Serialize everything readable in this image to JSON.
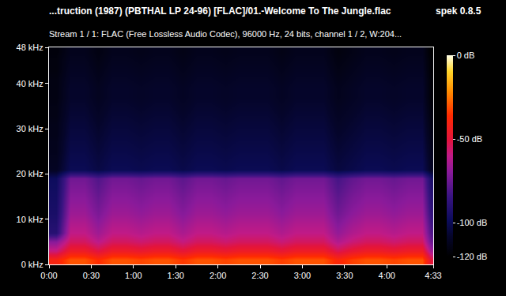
{
  "chart_data": {
    "type": "heatmap",
    "title": "...truction (1987) (PBTHAL LP 24-96) [FLAC]/01.-Welcome To The Jungle.flac",
    "subtitle": "Stream 1 / 1: FLAC (Free Lossless Audio Codec), 96000 Hz, 24 bits, channel 1 / 2, W:204...",
    "annotations": [
      "spek 0.8.5"
    ],
    "x": [
      5,
      15,
      25,
      35,
      45,
      55,
      65,
      75,
      85,
      95,
      105,
      115,
      125,
      135,
      145,
      155,
      165,
      175,
      185,
      195,
      205,
      215,
      225,
      235,
      245,
      255,
      265,
      271.5
    ],
    "y": [
      1,
      3,
      5,
      7,
      9,
      11,
      13,
      15,
      17,
      19,
      21,
      23,
      25,
      27,
      29,
      31,
      33,
      35,
      37,
      39,
      41,
      43,
      45,
      47
    ],
    "z": [
      [
        -40,
        -30,
        -30,
        -36,
        -30,
        -30,
        -32,
        -30,
        -30,
        -34,
        -30,
        -30,
        -32,
        -30,
        -30,
        -30,
        -33,
        -30,
        -30,
        -30,
        -38,
        -33,
        -30,
        -30,
        -32,
        -30,
        -30,
        -50
      ],
      [
        -58,
        -45,
        -45,
        -51,
        -45,
        -45,
        -47,
        -45,
        -45,
        -49,
        -45,
        -45,
        -47,
        -45,
        -45,
        -45,
        -48,
        -45,
        -45,
        -45,
        -53,
        -48,
        -45,
        -45,
        -47,
        -45,
        -45,
        -65
      ],
      [
        -70,
        -55,
        -55,
        -61,
        -55,
        -55,
        -57,
        -55,
        -55,
        -59,
        -55,
        -55,
        -57,
        -55,
        -55,
        -55,
        -58,
        -55,
        -55,
        -55,
        -63,
        -58,
        -55,
        -55,
        -57,
        -55,
        -55,
        -75
      ],
      [
        -90,
        -60,
        -60,
        -66,
        -60,
        -60,
        -62,
        -60,
        -60,
        -64,
        -60,
        -60,
        -62,
        -60,
        -60,
        -60,
        -63,
        -60,
        -60,
        -60,
        -68,
        -63,
        -60,
        -60,
        -62,
        -60,
        -60,
        -80
      ],
      [
        -92,
        -63,
        -63,
        -69,
        -63,
        -63,
        -65,
        -63,
        -63,
        -67,
        -63,
        -63,
        -65,
        -63,
        -63,
        -63,
        -66,
        -63,
        -63,
        -63,
        -71,
        -66,
        -63,
        -63,
        -65,
        -63,
        -63,
        -83
      ],
      [
        -94,
        -66,
        -66,
        -72,
        -66,
        -66,
        -68,
        -66,
        -66,
        -70,
        -66,
        -66,
        -68,
        -66,
        -66,
        -66,
        -69,
        -66,
        -66,
        -66,
        -74,
        -69,
        -66,
        -66,
        -68,
        -66,
        -66,
        -86
      ],
      [
        -95,
        -68,
        -68,
        -74,
        -68,
        -68,
        -70,
        -68,
        -68,
        -72,
        -68,
        -68,
        -70,
        -68,
        -68,
        -68,
        -71,
        -68,
        -68,
        -68,
        -76,
        -71,
        -68,
        -68,
        -70,
        -68,
        -68,
        -88
      ],
      [
        -96,
        -70,
        -70,
        -76,
        -70,
        -70,
        -72,
        -70,
        -70,
        -74,
        -70,
        -70,
        -72,
        -70,
        -70,
        -70,
        -73,
        -70,
        -70,
        -70,
        -78,
        -73,
        -70,
        -70,
        -72,
        -70,
        -70,
        -90
      ],
      [
        -97,
        -72,
        -72,
        -78,
        -72,
        -72,
        -74,
        -72,
        -72,
        -76,
        -72,
        -72,
        -74,
        -72,
        -72,
        -72,
        -75,
        -72,
        -72,
        -72,
        -80,
        -75,
        -72,
        -72,
        -74,
        -72,
        -72,
        -92
      ],
      [
        -98,
        -74,
        -74,
        -80,
        -74,
        -74,
        -76,
        -74,
        -74,
        -78,
        -74,
        -74,
        -76,
        -74,
        -74,
        -74,
        -77,
        -74,
        -74,
        -74,
        -82,
        -77,
        -74,
        -74,
        -76,
        -74,
        -74,
        -94
      ],
      [
        -110,
        -100,
        -100,
        -103,
        -100,
        -100,
        -101,
        -100,
        -100,
        -102,
        -100,
        -100,
        -101,
        -100,
        -100,
        -100,
        -102,
        -100,
        -100,
        -100,
        -104,
        -102,
        -100,
        -100,
        -101,
        -100,
        -100,
        -110
      ],
      [
        -111,
        -101,
        -101,
        -104,
        -101,
        -101,
        -102,
        -101,
        -101,
        -103,
        -101,
        -101,
        -102,
        -101,
        -101,
        -101,
        -103,
        -101,
        -101,
        -101,
        -105,
        -103,
        -101,
        -101,
        -102,
        -101,
        -101,
        -111
      ],
      [
        -112,
        -102,
        -102,
        -105,
        -102,
        -102,
        -103,
        -102,
        -102,
        -104,
        -102,
        -102,
        -103,
        -102,
        -102,
        -102,
        -104,
        -102,
        -102,
        -102,
        -106,
        -104,
        -102,
        -102,
        -103,
        -102,
        -102,
        -112
      ],
      [
        -112,
        -103,
        -103,
        -106,
        -103,
        -103,
        -104,
        -103,
        -103,
        -105,
        -103,
        -103,
        -104,
        -103,
        -103,
        -103,
        -105,
        -103,
        -103,
        -103,
        -107,
        -105,
        -103,
        -103,
        -104,
        -103,
        -103,
        -113
      ],
      [
        -113,
        -104,
        -104,
        -107,
        -104,
        -104,
        -105,
        -104,
        -104,
        -106,
        -104,
        -104,
        -105,
        -104,
        -104,
        -104,
        -106,
        -104,
        -104,
        -104,
        -108,
        -106,
        -104,
        -104,
        -105,
        -104,
        -104,
        -114
      ],
      [
        -113,
        -105,
        -105,
        -108,
        -105,
        -105,
        -106,
        -105,
        -105,
        -107,
        -105,
        -105,
        -106,
        -105,
        -105,
        -105,
        -107,
        -105,
        -105,
        -105,
        -109,
        -107,
        -105,
        -105,
        -106,
        -105,
        -105,
        -115
      ],
      [
        -114,
        -106,
        -106,
        -109,
        -106,
        -106,
        -107,
        -106,
        -106,
        -108,
        -106,
        -106,
        -107,
        -106,
        -106,
        -106,
        -108,
        -106,
        -106,
        -106,
        -110,
        -108,
        -106,
        -106,
        -107,
        -106,
        -106,
        -116
      ],
      [
        -114,
        -107,
        -107,
        -110,
        -107,
        -107,
        -108,
        -107,
        -107,
        -109,
        -107,
        -107,
        -108,
        -107,
        -107,
        -107,
        -109,
        -107,
        -107,
        -107,
        -111,
        -109,
        -107,
        -107,
        -108,
        -107,
        -107,
        -117
      ],
      [
        -115,
        -108,
        -108,
        -111,
        -108,
        -108,
        -109,
        -108,
        -108,
        -110,
        -108,
        -108,
        -109,
        -108,
        -108,
        -108,
        -110,
        -108,
        -108,
        -108,
        -112,
        -110,
        -108,
        -108,
        -109,
        -108,
        -108,
        -118
      ],
      [
        -115,
        -108,
        -108,
        -111,
        -108,
        -108,
        -109,
        -108,
        -108,
        -110,
        -108,
        -108,
        -109,
        -108,
        -108,
        -108,
        -110,
        -108,
        -108,
        -108,
        -112,
        -110,
        -108,
        -108,
        -109,
        -108,
        -108,
        -118
      ],
      [
        -115,
        -109,
        -109,
        -112,
        -109,
        -109,
        -110,
        -109,
        -109,
        -111,
        -109,
        -109,
        -110,
        -109,
        -109,
        -109,
        -111,
        -109,
        -109,
        -109,
        -113,
        -111,
        -109,
        -109,
        -110,
        -109,
        -109,
        -118
      ],
      [
        -116,
        -110,
        -110,
        -113,
        -110,
        -110,
        -111,
        -110,
        -110,
        -112,
        -110,
        -110,
        -111,
        -110,
        -110,
        -110,
        -112,
        -110,
        -110,
        -110,
        -114,
        -112,
        -110,
        -110,
        -111,
        -110,
        -110,
        -119
      ],
      [
        -116,
        -111,
        -111,
        -114,
        -111,
        -111,
        -112,
        -111,
        -111,
        -113,
        -111,
        -111,
        -112,
        -111,
        -111,
        -111,
        -113,
        -111,
        -111,
        -111,
        -115,
        -113,
        -111,
        -111,
        -112,
        -111,
        -111,
        -119
      ],
      [
        -117,
        -112,
        -112,
        -115,
        -112,
        -112,
        -113,
        -112,
        -112,
        -114,
        -112,
        -112,
        -113,
        -112,
        -112,
        -112,
        -114,
        -112,
        -112,
        -112,
        -116,
        -114,
        -112,
        -112,
        -113,
        -112,
        -112,
        -120
      ]
    ],
    "xlim": [
      0,
      273
    ],
    "xticks": [
      {
        "value": 0,
        "label": "0:00"
      },
      {
        "value": 30,
        "label": "0:30"
      },
      {
        "value": 60,
        "label": "1:00"
      },
      {
        "value": 90,
        "label": "1:30"
      },
      {
        "value": 120,
        "label": "2:00"
      },
      {
        "value": 150,
        "label": "2:30"
      },
      {
        "value": 180,
        "label": "3:00"
      },
      {
        "value": 210,
        "label": "3:30"
      },
      {
        "value": 240,
        "label": "4:00"
      },
      {
        "value": 273,
        "label": "4:33"
      }
    ],
    "ylim": [
      0,
      48
    ],
    "yticks": [
      {
        "value": 0,
        "label": "0 kHz"
      },
      {
        "value": 10,
        "label": "10 kHz"
      },
      {
        "value": 20,
        "label": "20 kHz"
      },
      {
        "value": 30,
        "label": "30 kHz"
      },
      {
        "value": 40,
        "label": "40 kHz"
      },
      {
        "value": 48,
        "label": "48 kHz"
      }
    ],
    "colorbar": {
      "range": [
        -120,
        0
      ],
      "ticks": [
        {
          "value": 0,
          "label": "0 dB"
        },
        {
          "value": -50,
          "label": "-50 dB"
        },
        {
          "value": -100,
          "label": "-100 dB"
        },
        {
          "value": -120,
          "label": "-120 dB"
        }
      ]
    }
  }
}
